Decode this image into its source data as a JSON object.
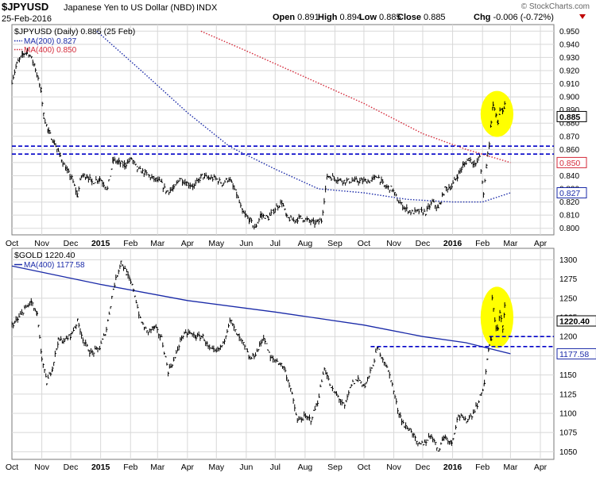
{
  "header": {
    "symbol": "$JPYUSD",
    "description": "Japanese Yen to US Dollar (NBD)",
    "exchange": "INDX",
    "date": "25-Feb-2016",
    "brand": "© StockCharts.com",
    "ohlc": [
      {
        "label": "Open",
        "value": "0.891"
      },
      {
        "label": "High",
        "value": "0.894"
      },
      {
        "label": "Low",
        "value": "0.885"
      },
      {
        "label": "Close",
        "value": "0.885"
      },
      {
        "label": "Chg",
        "value": "-0.006 (-0.72%)"
      }
    ]
  },
  "colors": {
    "price": "#000000",
    "ma200": "#1a2aa8",
    "ma400_red": "#d42a3a",
    "ma400_blue": "#1a2aa8",
    "support": "#0000c8",
    "highlight": "#ffff00",
    "grid": "#d8d8d8"
  },
  "chart_data": [
    {
      "type": "ohlc",
      "title": "$JPYUSD (Daily) 0.885 (25 Feb)",
      "legend": [
        {
          "label": "MA(200) 0.827",
          "style": "dotted-blue"
        },
        {
          "label": "MA(400) 0.850",
          "style": "dotted-red"
        }
      ],
      "ylim": [
        0.795,
        0.955
      ],
      "yticks": [
        0.8,
        0.81,
        0.82,
        0.83,
        0.84,
        0.85,
        0.86,
        0.87,
        0.88,
        0.89,
        0.9,
        0.91,
        0.92,
        0.93,
        0.94,
        0.95
      ],
      "ytick_labels": [
        "0.800",
        "0.810",
        "0.820",
        "0.830",
        "0.840",
        "0.850",
        "0.860",
        "0.870",
        "0.880",
        "0.890",
        "0.900",
        "0.910",
        "0.920",
        "0.930",
        "0.940",
        "0.950"
      ],
      "y_labels": [
        {
          "value": 0.885,
          "text": "0.885",
          "style": "black"
        },
        {
          "value": 0.85,
          "text": "0.850",
          "style": "red"
        },
        {
          "value": 0.827,
          "text": "0.827",
          "style": "blue"
        }
      ],
      "xlim": [
        "2014-10-01",
        "2016-04-15"
      ],
      "xticks": [
        {
          "date": "2014-10-01",
          "label": "Oct"
        },
        {
          "date": "2014-11-01",
          "label": "Nov"
        },
        {
          "date": "2014-12-01",
          "label": "Dec"
        },
        {
          "date": "2015-01-01",
          "label": "2015",
          "bold": true
        },
        {
          "date": "2015-02-01",
          "label": "Feb"
        },
        {
          "date": "2015-03-01",
          "label": "Mar"
        },
        {
          "date": "2015-04-01",
          "label": "Apr"
        },
        {
          "date": "2015-05-01",
          "label": "May"
        },
        {
          "date": "2015-06-01",
          "label": "Jun"
        },
        {
          "date": "2015-07-01",
          "label": "Jul"
        },
        {
          "date": "2015-08-01",
          "label": "Aug"
        },
        {
          "date": "2015-09-01",
          "label": "Sep"
        },
        {
          "date": "2015-10-01",
          "label": "Oct"
        },
        {
          "date": "2015-11-01",
          "label": "Nov"
        },
        {
          "date": "2015-12-01",
          "label": "Dec"
        },
        {
          "date": "2016-01-01",
          "label": "2016",
          "bold": true
        },
        {
          "date": "2016-02-01",
          "label": "Feb"
        },
        {
          "date": "2016-03-01",
          "label": "Mar"
        },
        {
          "date": "2016-04-01",
          "label": "Apr"
        }
      ],
      "price": [
        [
          "2014-10-01",
          0.912
        ],
        [
          "2014-10-06",
          0.925
        ],
        [
          "2014-10-12",
          0.932
        ],
        [
          "2014-10-17",
          0.935
        ],
        [
          "2014-10-24",
          0.925
        ],
        [
          "2014-10-31",
          0.905
        ],
        [
          "2014-11-03",
          0.885
        ],
        [
          "2014-11-08",
          0.873
        ],
        [
          "2014-11-14",
          0.865
        ],
        [
          "2014-11-20",
          0.855
        ],
        [
          "2014-11-26",
          0.845
        ],
        [
          "2014-12-02",
          0.838
        ],
        [
          "2014-12-08",
          0.825
        ],
        [
          "2014-12-12",
          0.84
        ],
        [
          "2014-12-18",
          0.84
        ],
        [
          "2014-12-23",
          0.835
        ],
        [
          "2014-12-31",
          0.838
        ],
        [
          "2015-01-08",
          0.83
        ],
        [
          "2015-01-14",
          0.852
        ],
        [
          "2015-01-20",
          0.85
        ],
        [
          "2015-01-26",
          0.848
        ],
        [
          "2015-02-02",
          0.853
        ],
        [
          "2015-02-08",
          0.845
        ],
        [
          "2015-02-16",
          0.842
        ],
        [
          "2015-02-24",
          0.838
        ],
        [
          "2015-03-04",
          0.835
        ],
        [
          "2015-03-10",
          0.828
        ],
        [
          "2015-03-18",
          0.83
        ],
        [
          "2015-03-24",
          0.838
        ],
        [
          "2015-04-01",
          0.834
        ],
        [
          "2015-04-08",
          0.832
        ],
        [
          "2015-04-16",
          0.84
        ],
        [
          "2015-04-23",
          0.838
        ],
        [
          "2015-04-30",
          0.838
        ],
        [
          "2015-05-07",
          0.834
        ],
        [
          "2015-05-14",
          0.838
        ],
        [
          "2015-05-22",
          0.826
        ],
        [
          "2015-05-28",
          0.812
        ],
        [
          "2015-06-05",
          0.806
        ],
        [
          "2015-06-10",
          0.8
        ],
        [
          "2015-06-16",
          0.81
        ],
        [
          "2015-06-24",
          0.808
        ],
        [
          "2015-07-01",
          0.815
        ],
        [
          "2015-07-08",
          0.82
        ],
        [
          "2015-07-13",
          0.808
        ],
        [
          "2015-07-20",
          0.806
        ],
        [
          "2015-07-27",
          0.808
        ],
        [
          "2015-08-04",
          0.806
        ],
        [
          "2015-08-11",
          0.804
        ],
        [
          "2015-08-18",
          0.806
        ],
        [
          "2015-08-24",
          0.84
        ],
        [
          "2015-09-01",
          0.838
        ],
        [
          "2015-09-09",
          0.836
        ],
        [
          "2015-09-16",
          0.836
        ],
        [
          "2015-09-24",
          0.836
        ],
        [
          "2015-10-01",
          0.836
        ],
        [
          "2015-10-08",
          0.836
        ],
        [
          "2015-10-15",
          0.84
        ],
        [
          "2015-10-22",
          0.832
        ],
        [
          "2015-10-30",
          0.83
        ],
        [
          "2015-11-06",
          0.82
        ],
        [
          "2015-11-13",
          0.815
        ],
        [
          "2015-11-20",
          0.812
        ],
        [
          "2015-11-27",
          0.813
        ],
        [
          "2015-12-04",
          0.812
        ],
        [
          "2015-12-11",
          0.82
        ],
        [
          "2015-12-17",
          0.815
        ],
        [
          "2015-12-24",
          0.83
        ],
        [
          "2015-12-31",
          0.832
        ],
        [
          "2016-01-06",
          0.84
        ],
        [
          "2016-01-12",
          0.848
        ],
        [
          "2016-01-18",
          0.853
        ],
        [
          "2016-01-25",
          0.848
        ],
        [
          "2016-01-29",
          0.855
        ],
        [
          "2016-02-02",
          0.825
        ],
        [
          "2016-02-05",
          0.848
        ],
        [
          "2016-02-08",
          0.865
        ],
        [
          "2016-02-10",
          0.882
        ],
        [
          "2016-02-12",
          0.895
        ],
        [
          "2016-02-15",
          0.885
        ],
        [
          "2016-02-17",
          0.88
        ],
        [
          "2016-02-19",
          0.89
        ],
        [
          "2016-02-22",
          0.888
        ],
        [
          "2016-02-24",
          0.894
        ],
        [
          "2016-02-25",
          0.885
        ]
      ],
      "ma200": [
        [
          "2014-12-28",
          0.95
        ],
        [
          "2015-02-15",
          0.918
        ],
        [
          "2015-04-01",
          0.888
        ],
        [
          "2015-05-15",
          0.862
        ],
        [
          "2015-07-01",
          0.845
        ],
        [
          "2015-08-15",
          0.83
        ],
        [
          "2015-10-01",
          0.827
        ],
        [
          "2015-11-15",
          0.822
        ],
        [
          "2016-01-01",
          0.82
        ],
        [
          "2016-02-01",
          0.82
        ],
        [
          "2016-03-01",
          0.827
        ]
      ],
      "ma400": [
        [
          "2015-04-15",
          0.95
        ],
        [
          "2015-06-01",
          0.935
        ],
        [
          "2015-08-01",
          0.915
        ],
        [
          "2015-10-01",
          0.895
        ],
        [
          "2015-12-01",
          0.872
        ],
        [
          "2016-01-15",
          0.86
        ],
        [
          "2016-03-01",
          0.85
        ]
      ],
      "support_lines": [
        0.8625,
        0.8565
      ],
      "highlight": {
        "center": [
          "2016-02-16",
          0.887
        ],
        "radius_days": 17,
        "radius_y": 0.0175
      }
    },
    {
      "type": "ohlc",
      "title": "$GOLD 1220.40",
      "legend": [
        {
          "label": "MA(400) 1177.58",
          "style": "solid-blue"
        }
      ],
      "ylim": [
        1040,
        1315
      ],
      "yticks": [
        1050,
        1075,
        1100,
        1125,
        1150,
        1175,
        1200,
        1225,
        1250,
        1275,
        1300
      ],
      "ytick_labels": [
        "1050",
        "1075",
        "1100",
        "1125",
        "1150",
        "1175",
        "1200",
        "1225",
        "1250",
        "1275",
        "1300"
      ],
      "y_labels": [
        {
          "value": 1220.4,
          "text": "1220.40",
          "style": "black"
        },
        {
          "value": 1177.58,
          "text": "1177.58",
          "style": "blue"
        }
      ],
      "xlim": [
        "2014-10-01",
        "2016-04-15"
      ],
      "price": [
        [
          "2014-10-01",
          1215
        ],
        [
          "2014-10-07",
          1222
        ],
        [
          "2014-10-14",
          1236
        ],
        [
          "2014-10-21",
          1245
        ],
        [
          "2014-10-27",
          1228
        ],
        [
          "2014-11-01",
          1172
        ],
        [
          "2014-11-06",
          1140
        ],
        [
          "2014-11-12",
          1160
        ],
        [
          "2014-11-18",
          1195
        ],
        [
          "2014-11-25",
          1195
        ],
        [
          "2014-12-01",
          1202
        ],
        [
          "2014-12-08",
          1220
        ],
        [
          "2014-12-15",
          1192
        ],
        [
          "2014-12-22",
          1178
        ],
        [
          "2014-12-31",
          1185
        ],
        [
          "2015-01-07",
          1210
        ],
        [
          "2015-01-14",
          1262
        ],
        [
          "2015-01-22",
          1298
        ],
        [
          "2015-01-28",
          1282
        ],
        [
          "2015-02-04",
          1262
        ],
        [
          "2015-02-11",
          1222
        ],
        [
          "2015-02-18",
          1206
        ],
        [
          "2015-02-26",
          1212
        ],
        [
          "2015-03-05",
          1198
        ],
        [
          "2015-03-12",
          1155
        ],
        [
          "2015-03-19",
          1172
        ],
        [
          "2015-03-26",
          1200
        ],
        [
          "2015-04-02",
          1205
        ],
        [
          "2015-04-10",
          1200
        ],
        [
          "2015-04-17",
          1200
        ],
        [
          "2015-04-24",
          1183
        ],
        [
          "2015-05-01",
          1180
        ],
        [
          "2015-05-08",
          1190
        ],
        [
          "2015-05-15",
          1223
        ],
        [
          "2015-05-22",
          1203
        ],
        [
          "2015-05-29",
          1190
        ],
        [
          "2015-06-05",
          1170
        ],
        [
          "2015-06-12",
          1180
        ],
        [
          "2015-06-19",
          1200
        ],
        [
          "2015-06-26",
          1172
        ],
        [
          "2015-07-03",
          1168
        ],
        [
          "2015-07-10",
          1160
        ],
        [
          "2015-07-17",
          1132
        ],
        [
          "2015-07-24",
          1090
        ],
        [
          "2015-07-31",
          1095
        ],
        [
          "2015-08-07",
          1092
        ],
        [
          "2015-08-14",
          1115
        ],
        [
          "2015-08-21",
          1160
        ],
        [
          "2015-08-28",
          1132
        ],
        [
          "2015-09-04",
          1122
        ],
        [
          "2015-09-11",
          1108
        ],
        [
          "2015-09-18",
          1138
        ],
        [
          "2015-09-25",
          1145
        ],
        [
          "2015-10-02",
          1135
        ],
        [
          "2015-10-09",
          1158
        ],
        [
          "2015-10-15",
          1185
        ],
        [
          "2015-10-22",
          1168
        ],
        [
          "2015-10-29",
          1145
        ],
        [
          "2015-11-05",
          1105
        ],
        [
          "2015-11-12",
          1083
        ],
        [
          "2015-11-19",
          1078
        ],
        [
          "2015-11-26",
          1058
        ],
        [
          "2015-12-03",
          1062
        ],
        [
          "2015-12-10",
          1072
        ],
        [
          "2015-12-17",
          1052
        ],
        [
          "2015-12-23",
          1070
        ],
        [
          "2015-12-31",
          1062
        ],
        [
          "2016-01-07",
          1098
        ],
        [
          "2016-01-14",
          1090
        ],
        [
          "2016-01-21",
          1098
        ],
        [
          "2016-01-28",
          1115
        ],
        [
          "2016-02-03",
          1140
        ],
        [
          "2016-02-08",
          1190
        ],
        [
          "2016-02-10",
          1195
        ],
        [
          "2016-02-11",
          1252
        ],
        [
          "2016-02-15",
          1210
        ],
        [
          "2016-02-17",
          1210
        ],
        [
          "2016-02-19",
          1230
        ],
        [
          "2016-02-22",
          1212
        ],
        [
          "2016-02-24",
          1240
        ],
        [
          "2016-02-25",
          1220.4
        ]
      ],
      "ma400": [
        [
          "2014-10-01",
          1292
        ],
        [
          "2015-01-01",
          1268
        ],
        [
          "2015-04-01",
          1247
        ],
        [
          "2015-07-01",
          1232
        ],
        [
          "2015-10-01",
          1215
        ],
        [
          "2015-12-01",
          1200
        ],
        [
          "2016-01-15",
          1192
        ],
        [
          "2016-03-01",
          1177.58
        ]
      ],
      "support_lines": [
        {
          "value": 1200,
          "from": "2016-02-08"
        },
        {
          "value": 1187,
          "from": "2015-10-08"
        }
      ],
      "highlight": {
        "center": [
          "2016-02-16",
          1225
        ],
        "radius_days": 17,
        "radius_y": 40
      }
    }
  ]
}
